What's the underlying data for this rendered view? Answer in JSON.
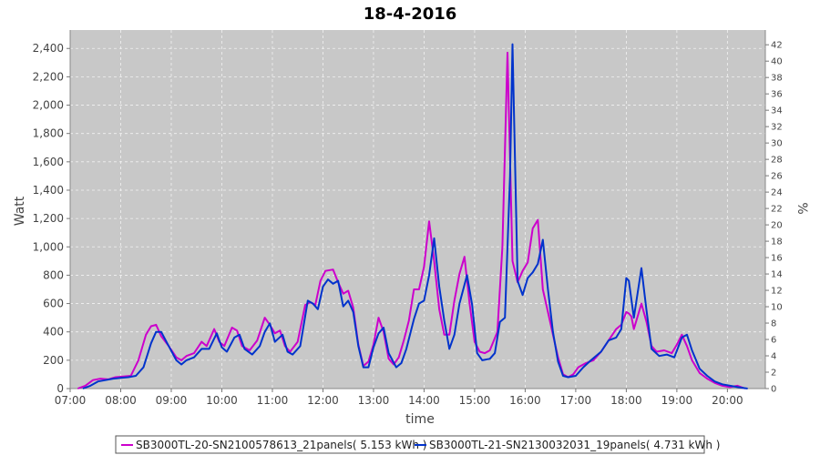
{
  "chart_data": {
    "type": "line",
    "title": "18-4-2016",
    "xlabel": "time",
    "ylabel": "Watt",
    "y2label": "%",
    "ylim": [
      0,
      2530
    ],
    "y2lim": [
      0,
      43.8
    ],
    "xlim": [
      7.0,
      20.75
    ],
    "grid": true,
    "legend_position": "bottom",
    "x_ticks": [
      "07:00",
      "08:00",
      "09:00",
      "10:00",
      "11:00",
      "12:00",
      "13:00",
      "14:00",
      "15:00",
      "16:00",
      "17:00",
      "18:00",
      "19:00",
      "20:00"
    ],
    "y_ticks": [
      "0",
      "200",
      "400",
      "600",
      "800",
      "1,000",
      "1,200",
      "1,400",
      "1,600",
      "1,800",
      "2,000",
      "2,200",
      "2,400"
    ],
    "y2_ticks": [
      "0",
      "2",
      "4",
      "6",
      "8",
      "10",
      "12",
      "14",
      "16",
      "18",
      "20",
      "22",
      "24",
      "26",
      "28",
      "30",
      "32",
      "34",
      "36",
      "38",
      "40",
      "42"
    ],
    "series": [
      {
        "name": "SB3000TL-20-SN2100578613_21panels( 5.153 kWh )",
        "color": "#cc00cc",
        "points": [
          [
            7.15,
            0
          ],
          [
            7.3,
            20
          ],
          [
            7.45,
            60
          ],
          [
            7.6,
            70
          ],
          [
            7.75,
            65
          ],
          [
            7.9,
            80
          ],
          [
            8.05,
            85
          ],
          [
            8.2,
            90
          ],
          [
            8.35,
            200
          ],
          [
            8.5,
            380
          ],
          [
            8.6,
            440
          ],
          [
            8.7,
            450
          ],
          [
            8.8,
            370
          ],
          [
            8.95,
            300
          ],
          [
            9.1,
            220
          ],
          [
            9.2,
            200
          ],
          [
            9.3,
            230
          ],
          [
            9.45,
            250
          ],
          [
            9.6,
            330
          ],
          [
            9.7,
            300
          ],
          [
            9.85,
            420
          ],
          [
            9.95,
            330
          ],
          [
            10.05,
            300
          ],
          [
            10.2,
            430
          ],
          [
            10.3,
            410
          ],
          [
            10.4,
            300
          ],
          [
            10.55,
            270
          ],
          [
            10.7,
            340
          ],
          [
            10.85,
            500
          ],
          [
            10.95,
            450
          ],
          [
            11.05,
            390
          ],
          [
            11.15,
            410
          ],
          [
            11.25,
            300
          ],
          [
            11.35,
            260
          ],
          [
            11.5,
            330
          ],
          [
            11.65,
            590
          ],
          [
            11.75,
            610
          ],
          [
            11.85,
            590
          ],
          [
            11.95,
            760
          ],
          [
            12.05,
            830
          ],
          [
            12.2,
            840
          ],
          [
            12.3,
            750
          ],
          [
            12.4,
            670
          ],
          [
            12.5,
            690
          ],
          [
            12.6,
            570
          ],
          [
            12.7,
            310
          ],
          [
            12.8,
            160
          ],
          [
            12.9,
            190
          ],
          [
            13.0,
            310
          ],
          [
            13.1,
            500
          ],
          [
            13.2,
            400
          ],
          [
            13.3,
            210
          ],
          [
            13.4,
            170
          ],
          [
            13.5,
            220
          ],
          [
            13.6,
            340
          ],
          [
            13.7,
            480
          ],
          [
            13.8,
            700
          ],
          [
            13.9,
            700
          ],
          [
            14.0,
            860
          ],
          [
            14.1,
            1180
          ],
          [
            14.2,
            900
          ],
          [
            14.3,
            560
          ],
          [
            14.4,
            380
          ],
          [
            14.5,
            380
          ],
          [
            14.6,
            620
          ],
          [
            14.7,
            810
          ],
          [
            14.8,
            930
          ],
          [
            14.9,
            600
          ],
          [
            15.0,
            330
          ],
          [
            15.1,
            260
          ],
          [
            15.2,
            250
          ],
          [
            15.3,
            270
          ],
          [
            15.45,
            400
          ],
          [
            15.55,
            1000
          ],
          [
            15.65,
            2370
          ],
          [
            15.75,
            900
          ],
          [
            15.85,
            750
          ],
          [
            15.95,
            830
          ],
          [
            16.05,
            890
          ],
          [
            16.15,
            1130
          ],
          [
            16.25,
            1190
          ],
          [
            16.35,
            700
          ],
          [
            16.45,
            540
          ],
          [
            16.55,
            380
          ],
          [
            16.65,
            220
          ],
          [
            16.75,
            100
          ],
          [
            16.85,
            80
          ],
          [
            16.95,
            100
          ],
          [
            17.05,
            150
          ],
          [
            17.2,
            180
          ],
          [
            17.35,
            200
          ],
          [
            17.5,
            260
          ],
          [
            17.65,
            340
          ],
          [
            17.8,
            420
          ],
          [
            17.9,
            450
          ],
          [
            18.0,
            540
          ],
          [
            18.05,
            530
          ],
          [
            18.1,
            510
          ],
          [
            18.15,
            420
          ],
          [
            18.2,
            480
          ],
          [
            18.3,
            600
          ],
          [
            18.4,
            470
          ],
          [
            18.5,
            300
          ],
          [
            18.6,
            260
          ],
          [
            18.75,
            270
          ],
          [
            18.9,
            250
          ],
          [
            19.0,
            310
          ],
          [
            19.1,
            380
          ],
          [
            19.2,
            300
          ],
          [
            19.3,
            200
          ],
          [
            19.45,
            110
          ],
          [
            19.6,
            70
          ],
          [
            19.75,
            40
          ],
          [
            19.9,
            20
          ],
          [
            20.05,
            10
          ],
          [
            20.2,
            20
          ],
          [
            20.35,
            0
          ]
        ]
      },
      {
        "name": "SB3000TL-21-SN2130032031_19panels( 4.731 kWh )",
        "color": "#0033cc",
        "points": [
          [
            7.25,
            0
          ],
          [
            7.4,
            20
          ],
          [
            7.55,
            50
          ],
          [
            7.7,
            60
          ],
          [
            7.85,
            70
          ],
          [
            8.0,
            75
          ],
          [
            8.15,
            80
          ],
          [
            8.3,
            90
          ],
          [
            8.45,
            150
          ],
          [
            8.6,
            320
          ],
          [
            8.7,
            400
          ],
          [
            8.8,
            400
          ],
          [
            8.95,
            300
          ],
          [
            9.1,
            200
          ],
          [
            9.2,
            170
          ],
          [
            9.3,
            200
          ],
          [
            9.45,
            220
          ],
          [
            9.6,
            280
          ],
          [
            9.75,
            280
          ],
          [
            9.9,
            390
          ],
          [
            10.0,
            290
          ],
          [
            10.1,
            260
          ],
          [
            10.25,
            360
          ],
          [
            10.35,
            380
          ],
          [
            10.45,
            280
          ],
          [
            10.6,
            240
          ],
          [
            10.75,
            300
          ],
          [
            10.85,
            400
          ],
          [
            10.95,
            460
          ],
          [
            11.05,
            330
          ],
          [
            11.2,
            380
          ],
          [
            11.3,
            260
          ],
          [
            11.4,
            240
          ],
          [
            11.55,
            300
          ],
          [
            11.7,
            620
          ],
          [
            11.8,
            600
          ],
          [
            11.9,
            560
          ],
          [
            12.0,
            720
          ],
          [
            12.1,
            770
          ],
          [
            12.2,
            740
          ],
          [
            12.3,
            760
          ],
          [
            12.4,
            580
          ],
          [
            12.5,
            620
          ],
          [
            12.6,
            540
          ],
          [
            12.7,
            300
          ],
          [
            12.8,
            150
          ],
          [
            12.9,
            150
          ],
          [
            13.0,
            290
          ],
          [
            13.1,
            390
          ],
          [
            13.2,
            430
          ],
          [
            13.3,
            250
          ],
          [
            13.45,
            150
          ],
          [
            13.55,
            180
          ],
          [
            13.65,
            280
          ],
          [
            13.8,
            490
          ],
          [
            13.9,
            600
          ],
          [
            14.0,
            620
          ],
          [
            14.1,
            800
          ],
          [
            14.2,
            1060
          ],
          [
            14.3,
            720
          ],
          [
            14.4,
            480
          ],
          [
            14.5,
            280
          ],
          [
            14.6,
            380
          ],
          [
            14.7,
            600
          ],
          [
            14.85,
            800
          ],
          [
            14.95,
            590
          ],
          [
            15.05,
            250
          ],
          [
            15.15,
            200
          ],
          [
            15.3,
            210
          ],
          [
            15.4,
            250
          ],
          [
            15.5,
            470
          ],
          [
            15.6,
            500
          ],
          [
            15.7,
            1500
          ],
          [
            15.75,
            2430
          ],
          [
            15.85,
            760
          ],
          [
            15.95,
            660
          ],
          [
            16.05,
            780
          ],
          [
            16.15,
            820
          ],
          [
            16.25,
            880
          ],
          [
            16.35,
            1050
          ],
          [
            16.45,
            700
          ],
          [
            16.55,
            400
          ],
          [
            16.65,
            190
          ],
          [
            16.75,
            90
          ],
          [
            16.85,
            80
          ],
          [
            17.0,
            90
          ],
          [
            17.15,
            150
          ],
          [
            17.3,
            200
          ],
          [
            17.5,
            260
          ],
          [
            17.65,
            340
          ],
          [
            17.8,
            360
          ],
          [
            17.9,
            420
          ],
          [
            18.0,
            780
          ],
          [
            18.05,
            760
          ],
          [
            18.15,
            500
          ],
          [
            18.3,
            850
          ],
          [
            18.4,
            550
          ],
          [
            18.5,
            280
          ],
          [
            18.65,
            230
          ],
          [
            18.8,
            240
          ],
          [
            18.95,
            220
          ],
          [
            19.1,
            360
          ],
          [
            19.2,
            380
          ],
          [
            19.3,
            270
          ],
          [
            19.45,
            140
          ],
          [
            19.6,
            90
          ],
          [
            19.75,
            50
          ],
          [
            19.9,
            30
          ],
          [
            20.05,
            20
          ],
          [
            20.2,
            10
          ],
          [
            20.4,
            0
          ]
        ]
      }
    ]
  }
}
